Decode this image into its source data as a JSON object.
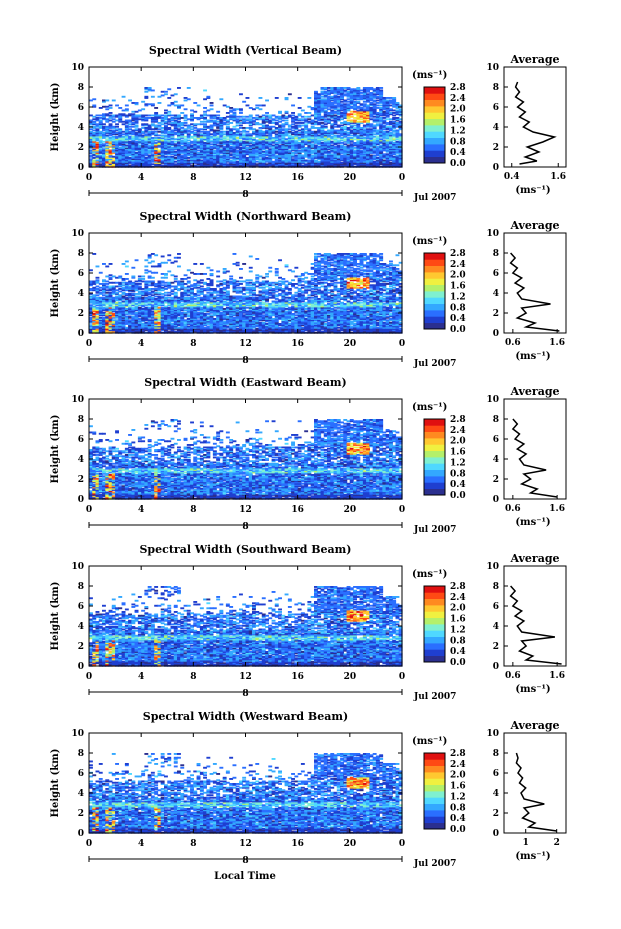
{
  "figure": {
    "xlabel": "Local Time",
    "date_label": "Jul 2007",
    "day_marker": "8",
    "colorbar_unit": "(ms⁻¹)",
    "avg_unit": "(ms⁻¹)",
    "colormap": [
      "#2b2f8f",
      "#1f3fd0",
      "#2a6fff",
      "#33a8ff",
      "#4fd8ff",
      "#7ff0d0",
      "#b4f06a",
      "#f0f040",
      "#ffc830",
      "#ff8a20",
      "#ff4a14",
      "#e01010"
    ]
  },
  "chart_data": [
    {
      "type": "heatmap",
      "title": "Spectral Width (Vertical Beam)",
      "xlabel": "Local Time",
      "ylabel": "Height (km)",
      "x_ticks": [
        "0",
        "4",
        "8",
        "12",
        "16",
        "20",
        "0"
      ],
      "y_ticks": [
        "0",
        "2",
        "4",
        "6",
        "8",
        "10"
      ],
      "xlim": [
        0,
        24
      ],
      "ylim": [
        0,
        10
      ],
      "colorbar": {
        "ticks": [
          "0.0",
          "0.4",
          "0.8",
          "1.2",
          "1.6",
          "2.0",
          "2.4",
          "2.8"
        ],
        "range": [
          0,
          2.8
        ]
      },
      "average": {
        "title": "Average",
        "xlabel": "(ms⁻¹)",
        "x_ticks": [
          "0.4",
          "1.6"
        ],
        "xlim": [
          0.2,
          1.8
        ],
        "ylim": [
          0,
          10
        ],
        "profile": [
          [
            0.6,
            0.3
          ],
          [
            1.05,
            0.6
          ],
          [
            0.75,
            1.0
          ],
          [
            1.1,
            1.5
          ],
          [
            0.8,
            2.0
          ],
          [
            1.2,
            2.5
          ],
          [
            1.5,
            3.0
          ],
          [
            0.95,
            3.5
          ],
          [
            0.7,
            4.0
          ],
          [
            0.85,
            4.5
          ],
          [
            0.6,
            5.0
          ],
          [
            0.75,
            5.5
          ],
          [
            0.55,
            6.0
          ],
          [
            0.7,
            6.5
          ],
          [
            0.5,
            7.0
          ],
          [
            0.6,
            7.5
          ],
          [
            0.5,
            8.0
          ],
          [
            0.55,
            8.5
          ]
        ]
      }
    },
    {
      "type": "heatmap",
      "title": "Spectral Width (Northward Beam)",
      "xlabel": "Local Time",
      "ylabel": "Height (km)",
      "x_ticks": [
        "0",
        "4",
        "8",
        "12",
        "16",
        "20",
        "0"
      ],
      "y_ticks": [
        "0",
        "2",
        "4",
        "6",
        "8",
        "10"
      ],
      "xlim": [
        0,
        24
      ],
      "ylim": [
        0,
        10
      ],
      "colorbar": {
        "ticks": [
          "0.0",
          "0.4",
          "0.8",
          "1.2",
          "1.6",
          "2.0",
          "2.4",
          "2.8"
        ],
        "range": [
          0,
          2.8
        ]
      },
      "average": {
        "title": "Average",
        "xlabel": "(ms⁻¹)",
        "x_ticks": [
          "0.6",
          "1.6"
        ],
        "xlim": [
          0.4,
          1.8
        ],
        "ylim": [
          0,
          10
        ],
        "profile": [
          [
            1.65,
            0.2
          ],
          [
            0.9,
            0.6
          ],
          [
            1.1,
            1.0
          ],
          [
            0.7,
            1.5
          ],
          [
            0.9,
            2.0
          ],
          [
            0.8,
            2.5
          ],
          [
            1.45,
            2.9
          ],
          [
            0.8,
            3.4
          ],
          [
            0.7,
            4.0
          ],
          [
            0.85,
            4.5
          ],
          [
            0.65,
            5.0
          ],
          [
            0.8,
            5.5
          ],
          [
            0.6,
            6.0
          ],
          [
            0.7,
            6.5
          ],
          [
            0.55,
            7.0
          ],
          [
            0.65,
            7.5
          ],
          [
            0.55,
            8.0
          ]
        ]
      }
    },
    {
      "type": "heatmap",
      "title": "Spectral Width (Eastward Beam)",
      "xlabel": "Local Time",
      "ylabel": "Height (km)",
      "x_ticks": [
        "0",
        "4",
        "8",
        "12",
        "16",
        "20",
        "0"
      ],
      "y_ticks": [
        "0",
        "2",
        "4",
        "6",
        "8",
        "10"
      ],
      "xlim": [
        0,
        24
      ],
      "ylim": [
        0,
        10
      ],
      "colorbar": {
        "ticks": [
          "0.0",
          "0.4",
          "0.8",
          "1.2",
          "1.6",
          "2.0",
          "2.4",
          "2.8"
        ],
        "range": [
          0,
          2.8
        ]
      },
      "average": {
        "title": "Average",
        "xlabel": "(ms⁻¹)",
        "x_ticks": [
          "0.6",
          "1.6"
        ],
        "xlim": [
          0.4,
          1.8
        ],
        "ylim": [
          0,
          10
        ],
        "profile": [
          [
            1.6,
            0.2
          ],
          [
            1.0,
            0.6
          ],
          [
            1.15,
            1.0
          ],
          [
            0.8,
            1.5
          ],
          [
            1.0,
            2.0
          ],
          [
            0.85,
            2.5
          ],
          [
            1.35,
            2.9
          ],
          [
            0.85,
            3.4
          ],
          [
            0.75,
            4.0
          ],
          [
            0.9,
            4.5
          ],
          [
            0.7,
            5.0
          ],
          [
            0.85,
            5.5
          ],
          [
            0.65,
            6.0
          ],
          [
            0.75,
            6.5
          ],
          [
            0.6,
            7.0
          ],
          [
            0.7,
            7.5
          ],
          [
            0.6,
            8.0
          ]
        ]
      }
    },
    {
      "type": "heatmap",
      "title": "Spectral Width (Southward Beam)",
      "xlabel": "Local Time",
      "ylabel": "Height (km)",
      "x_ticks": [
        "0",
        "4",
        "8",
        "12",
        "16",
        "20",
        "0"
      ],
      "y_ticks": [
        "0",
        "2",
        "4",
        "6",
        "8",
        "10"
      ],
      "xlim": [
        0,
        24
      ],
      "ylim": [
        0,
        10
      ],
      "colorbar": {
        "ticks": [
          "0.0",
          "0.4",
          "0.8",
          "1.2",
          "1.6",
          "2.0",
          "2.4",
          "2.8"
        ],
        "range": [
          0,
          2.8
        ]
      },
      "average": {
        "title": "Average",
        "xlabel": "(ms⁻¹)",
        "x_ticks": [
          "0.6",
          "1.6"
        ],
        "xlim": [
          0.4,
          1.8
        ],
        "ylim": [
          0,
          10
        ],
        "profile": [
          [
            1.7,
            0.2
          ],
          [
            0.9,
            0.6
          ],
          [
            1.05,
            1.0
          ],
          [
            0.75,
            1.5
          ],
          [
            0.9,
            2.0
          ],
          [
            0.8,
            2.5
          ],
          [
            1.55,
            2.9
          ],
          [
            0.8,
            3.4
          ],
          [
            0.7,
            4.0
          ],
          [
            0.85,
            4.5
          ],
          [
            0.65,
            5.0
          ],
          [
            0.8,
            5.5
          ],
          [
            0.6,
            6.0
          ],
          [
            0.7,
            6.5
          ],
          [
            0.55,
            7.0
          ],
          [
            0.65,
            7.5
          ],
          [
            0.55,
            8.0
          ]
        ]
      }
    },
    {
      "type": "heatmap",
      "title": "Spectral Width (Westward Beam)",
      "xlabel": "Local Time",
      "ylabel": "Height (km)",
      "x_ticks": [
        "0",
        "4",
        "8",
        "12",
        "16",
        "20",
        "0"
      ],
      "y_ticks": [
        "0",
        "2",
        "4",
        "6",
        "8",
        "10"
      ],
      "xlim": [
        0,
        24
      ],
      "ylim": [
        0,
        10
      ],
      "colorbar": {
        "ticks": [
          "0.0",
          "0.4",
          "0.8",
          "1.2",
          "1.6",
          "2.0",
          "2.4",
          "2.8"
        ],
        "range": [
          0,
          2.8
        ]
      },
      "average": {
        "title": "Average",
        "xlabel": "(ms⁻¹)",
        "x_ticks": [
          "1",
          "2"
        ],
        "xlim": [
          0.3,
          2.3
        ],
        "ylim": [
          0,
          10
        ],
        "profile": [
          [
            2.0,
            0.2
          ],
          [
            1.1,
            0.6
          ],
          [
            1.3,
            1.0
          ],
          [
            0.9,
            1.5
          ],
          [
            1.1,
            2.0
          ],
          [
            0.95,
            2.5
          ],
          [
            1.6,
            2.9
          ],
          [
            0.95,
            3.4
          ],
          [
            0.85,
            4.0
          ],
          [
            1.0,
            4.5
          ],
          [
            0.8,
            5.0
          ],
          [
            0.9,
            5.5
          ],
          [
            0.75,
            6.0
          ],
          [
            0.85,
            6.5
          ],
          [
            0.7,
            7.0
          ],
          [
            0.75,
            7.5
          ],
          [
            0.7,
            8.0
          ]
        ]
      }
    }
  ]
}
